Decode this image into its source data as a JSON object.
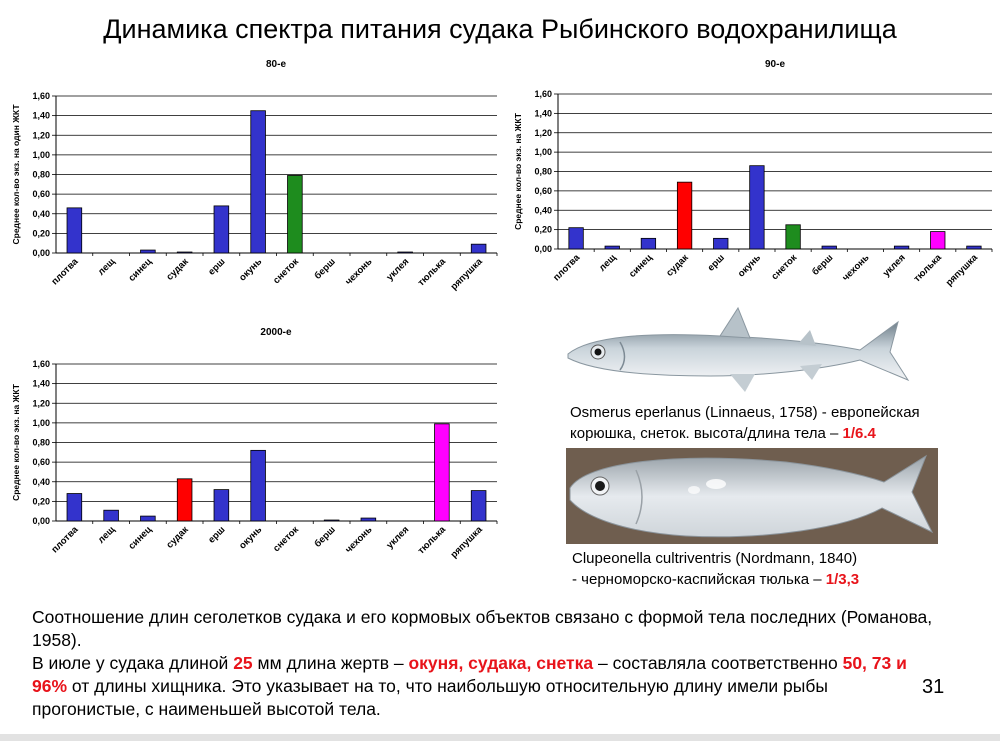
{
  "slide": {
    "title": "Динамика спектра питания судака Рыбинского водохранилища",
    "page_number": "31"
  },
  "chart_data": [
    {
      "type": "bar",
      "title": "80-е",
      "ylabel": "Среднее кол-во экз. на один ЖКТ",
      "categories": [
        "плотва",
        "лещ",
        "синец",
        "судак",
        "ерш",
        "окунь",
        "снеток",
        "берш",
        "чехонь",
        "уклея",
        "тюлька",
        "ряпушка"
      ],
      "values": [
        0.46,
        0,
        0.03,
        0.01,
        0.48,
        1.45,
        0.79,
        0,
        0,
        0.01,
        0,
        0.09
      ],
      "colors": [
        "#3333cc",
        "#3333cc",
        "#3333cc",
        "#3333cc",
        "#3333cc",
        "#3333cc",
        "#1e8c1e",
        "#3333cc",
        "#3333cc",
        "#3333cc",
        "#3333cc",
        "#3333cc"
      ],
      "ylim": [
        0,
        1.6
      ],
      "yticks": [
        "0,00",
        "0,20",
        "0,40",
        "0,60",
        "0,80",
        "1,00",
        "1,20",
        "1,40",
        "1,60"
      ],
      "grid": true
    },
    {
      "type": "bar",
      "title": "90-е",
      "ylabel": "Среднее кол-во экз. на ЖКТ",
      "categories": [
        "плотва",
        "лещ",
        "синец",
        "судак",
        "ерш",
        "окунь",
        "снеток",
        "берш",
        "чехонь",
        "уклея",
        "тюлька",
        "ряпушка"
      ],
      "values": [
        0.22,
        0.03,
        0.11,
        0.69,
        0.11,
        0.86,
        0.25,
        0.03,
        0,
        0.03,
        0.18,
        0.03
      ],
      "colors": [
        "#3333cc",
        "#3333cc",
        "#3333cc",
        "#ff0000",
        "#3333cc",
        "#3333cc",
        "#1e8c1e",
        "#3333cc",
        "#3333cc",
        "#3333cc",
        "#ff00ff",
        "#3333cc"
      ],
      "ylim": [
        0,
        1.6
      ],
      "yticks": [
        "0,00",
        "0,20",
        "0,40",
        "0,60",
        "0,80",
        "1,00",
        "1,20",
        "1,40",
        "1,60"
      ],
      "grid": true
    },
    {
      "type": "bar",
      "title": "2000-е",
      "ylabel": "Среднее кол-во экз. на ЖКТ",
      "categories": [
        "плотва",
        "лещ",
        "синец",
        "судак",
        "ерш",
        "окунь",
        "снеток",
        "берш",
        "чехонь",
        "уклея",
        "тюлька",
        "ряпушка"
      ],
      "values": [
        0.28,
        0.11,
        0.05,
        0.43,
        0.32,
        0.72,
        0,
        0.01,
        0.03,
        0,
        0.99,
        0.31
      ],
      "colors": [
        "#3333cc",
        "#3333cc",
        "#3333cc",
        "#ff0000",
        "#3333cc",
        "#3333cc",
        "#1e8c1e",
        "#3333cc",
        "#3333cc",
        "#3333cc",
        "#ff00ff",
        "#3333cc"
      ],
      "ylim": [
        0,
        1.6
      ],
      "yticks": [
        "0,00",
        "0,20",
        "0,40",
        "0,60",
        "0,80",
        "1,00",
        "1,20",
        "1,40",
        "1,60"
      ],
      "grid": true
    }
  ],
  "captions": {
    "smelt_line1": "Osmerus eperlanus (Linnaeus, 1758) - европейская",
    "smelt_line2": "корюшка, снеток.  высота/длина тела –",
    "smelt_ratio": "1/6.4",
    "kilka_line1": "Clupeonella cultriventris (Nordmann, 1840)",
    "kilka_line2": "- черноморско-каспийская тюлька –",
    "kilka_ratio": "1/3,3"
  },
  "body_text": {
    "p1": "Соотношение длин сеголетков судака и его кормовых объектов связано с формой тела последних (Романова, 1958).",
    "p2_a": "В июле у судака длиной ",
    "p2_len": "25",
    "p2_b": " мм длина жертв – ",
    "p2_prey": "окуня, судака, снетка",
    "p2_c": " – составляла соответственно ",
    "p2_pct": "50, 73 и 96%",
    "p2_d": " от длины хищника. Это указывает на то, что наибольшую относительную длину имели рыбы прогонистые, с наименьшей высотой тела."
  },
  "images": {
    "smelt_photo": "smelt-fish-photo",
    "kilka_photo": "kilka-fish-photo"
  }
}
